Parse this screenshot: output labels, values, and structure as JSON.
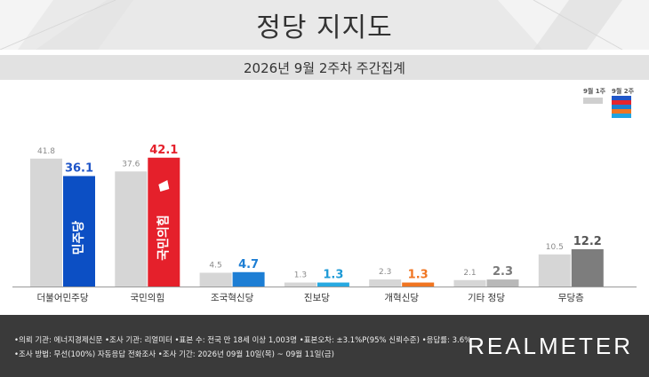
{
  "header": {
    "title": "정당 지지도",
    "subtitle": "2026년 9월 2주차 주간집계"
  },
  "legend": {
    "prev_label": "9월 1주",
    "curr_label": "9월 2주",
    "prev_color": "#cfcfcf",
    "curr_colors": [
      "#1f55c8",
      "#e5232d",
      "#1b7fd0",
      "#f07521",
      "#21a4e0"
    ]
  },
  "chart_data": {
    "type": "bar",
    "categories": [
      "더불어민주당",
      "국민의힘",
      "조국혁신당",
      "진보당",
      "개혁신당",
      "기타 정당",
      "무당층"
    ],
    "series": [
      {
        "name": "9월 1주",
        "values": [
          41.8,
          37.6,
          4.5,
          1.3,
          2.3,
          2.1,
          10.5
        ]
      },
      {
        "name": "9월 2주",
        "values": [
          36.1,
          42.1,
          4.7,
          1.3,
          1.3,
          2.3,
          12.2
        ]
      }
    ],
    "value_labels": {
      "prev": [
        "41.8",
        "37.6",
        "4.5",
        "1.3",
        "2.3",
        "2.1",
        "10.5"
      ],
      "curr": [
        "36.1",
        "42.1",
        "4.7",
        "1.3",
        "1.3",
        "2.3",
        "12.2"
      ]
    },
    "colors": {
      "prev": "#d6d6d6",
      "curr": [
        "#0c4fc4",
        "#e5202b",
        "#1d7ed4",
        "#27a9e1",
        "#f07521",
        "#b8b8b8",
        "#7d7d7d"
      ],
      "curr_label": [
        "#1f55c8",
        "#e5202b",
        "#1d7ed4",
        "#1d9ad6",
        "#f07521",
        "#7a7a7a",
        "#555555"
      ]
    },
    "bar_logos": [
      "민주당",
      "국민의힘",
      "",
      "",
      "",
      "",
      ""
    ],
    "ylim": [
      0,
      45
    ]
  },
  "footer": {
    "line1": "•의뢰 기관: 에너지경제신문  •조사 기관: 리얼미터  •표본 수: 전국 만 18세 이상 1,003명  •표본오차: ±3.1%P(95% 신뢰수준)  •응답률: 3.6%",
    "line2": "•조사 방법: 무선(100%) 자동응답 전화조사  •조사 기간: 2026년 09월 10일(목) ~ 09월 11일(금)",
    "brand": "REALMETER"
  }
}
